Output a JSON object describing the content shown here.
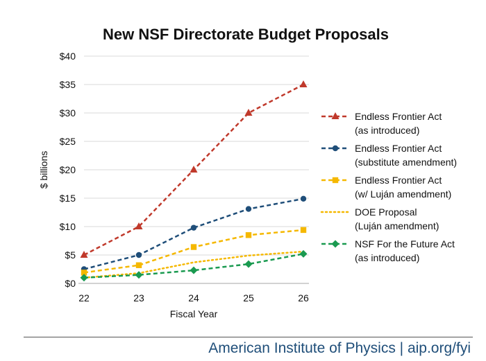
{
  "chart_data": {
    "type": "line",
    "title": "New NSF Directorate Budget Proposals",
    "xlabel": "Fiscal Year",
    "ylabel": "$ billions",
    "categories": [
      "22",
      "23",
      "24",
      "25",
      "26"
    ],
    "y_ticks": [
      "$0",
      "$5",
      "$10",
      "$15",
      "$20",
      "$25",
      "$30",
      "$35",
      "$40"
    ],
    "ylim": [
      0,
      40
    ],
    "grid": "horizontal",
    "legend_position": "right",
    "series": [
      {
        "name": "Endless Frontier Act (as introduced)",
        "legend_lines": [
          "Endless Frontier Act",
          "(as introduced)"
        ],
        "values": [
          5,
          10,
          20,
          30,
          35
        ],
        "color": "#c0392b",
        "marker": "triangle",
        "dash": "dashed"
      },
      {
        "name": "Endless Frontier Act (substitute amendment)",
        "legend_lines": [
          "Endless Frontier Act",
          "(substitute amendment)"
        ],
        "values": [
          2.5,
          5,
          9.8,
          13.1,
          14.9
        ],
        "color": "#1f4e79",
        "marker": "circle",
        "dash": "dashed"
      },
      {
        "name": "Endless Frontier Act (w/ Luján amendment)",
        "legend_lines": [
          "Endless Frontier Act",
          "(w/ Luján amendment)"
        ],
        "values": [
          1.9,
          3.2,
          6.4,
          8.5,
          9.4
        ],
        "color": "#f5b800",
        "marker": "square",
        "dash": "dashed"
      },
      {
        "name": "DOE Proposal (Luján amendment)",
        "legend_lines": [
          "DOE Proposal",
          "(Luján amendment)"
        ],
        "values": [
          1.0,
          1.8,
          3.7,
          4.9,
          5.6
        ],
        "color": "#f5b800",
        "marker": "none",
        "dash": "dotted"
      },
      {
        "name": "NSF For the Future Act (as introduced)",
        "legend_lines": [
          "NSF For the Future Act",
          "(as introduced)"
        ],
        "values": [
          1.0,
          1.5,
          2.3,
          3.4,
          5.2
        ],
        "color": "#1a9a50",
        "marker": "diamond",
        "dash": "dashed"
      }
    ]
  },
  "footer": {
    "text": "American Institute of Physics | aip.org/fyi"
  }
}
